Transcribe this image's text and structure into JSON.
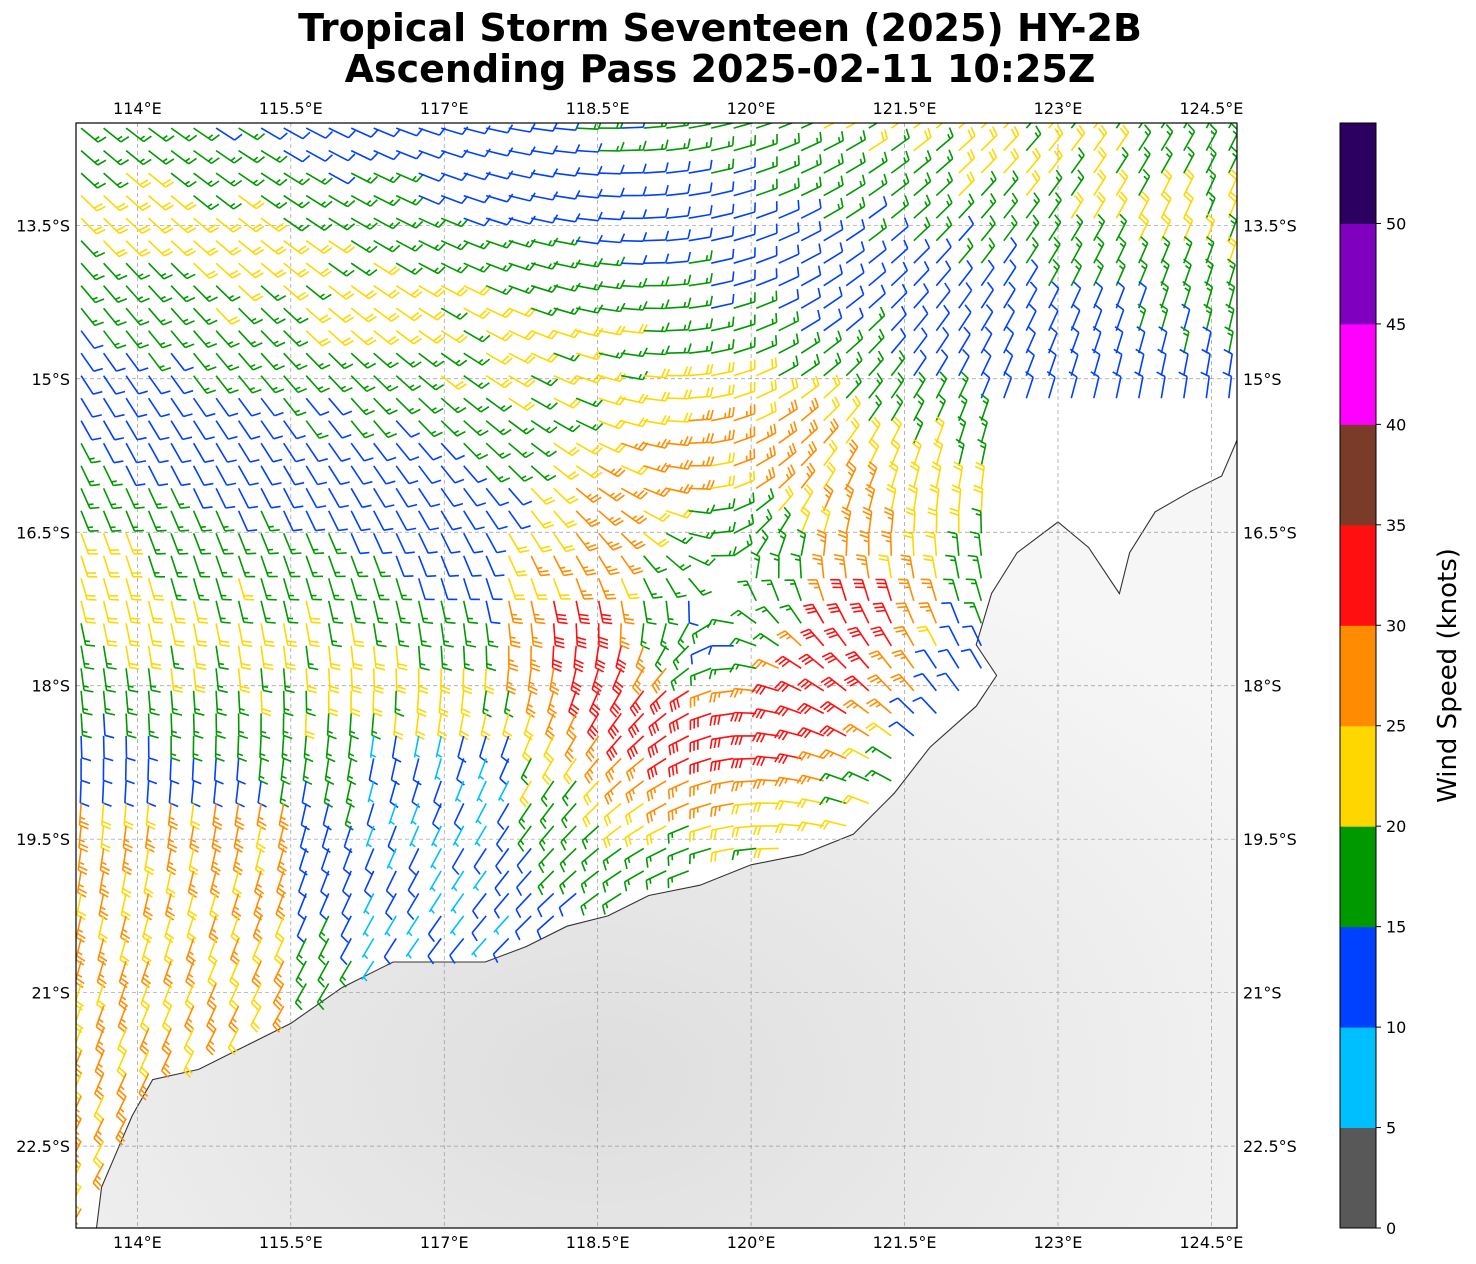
{
  "title": {
    "line1": "Tropical Storm Seventeen (2025) HY-2B",
    "line2": "Ascending Pass 2025-02-11 10:25Z"
  },
  "axes": {
    "lon_ticks": [
      "114°E",
      "115.5°E",
      "117°E",
      "118.5°E",
      "120°E",
      "121.5°E",
      "123°E",
      "124.5°E"
    ],
    "lat_ticks": [
      "13.5°S",
      "15°S",
      "16.5°S",
      "18°S",
      "19.5°S",
      "21°S",
      "22.5°S"
    ],
    "lon_range": [
      113.4,
      124.75
    ],
    "lat_range": [
      -23.3,
      -12.5
    ]
  },
  "colorbar": {
    "label": "Wind Speed (knots)",
    "ticks": [
      "0",
      "5",
      "10",
      "15",
      "20",
      "25",
      "30",
      "35",
      "40",
      "45",
      "50"
    ],
    "bins": [
      {
        "min": 0,
        "max": 5,
        "color": "#585858"
      },
      {
        "min": 5,
        "max": 10,
        "color": "#00bfff"
      },
      {
        "min": 10,
        "max": 15,
        "color": "#0040ff"
      },
      {
        "min": 15,
        "max": 20,
        "color": "#009900"
      },
      {
        "min": 20,
        "max": 25,
        "color": "#ffd700"
      },
      {
        "min": 25,
        "max": 30,
        "color": "#ff8c00"
      },
      {
        "min": 30,
        "max": 35,
        "color": "#ff0f0f"
      },
      {
        "min": 35,
        "max": 40,
        "color": "#7a3b28"
      },
      {
        "min": 40,
        "max": 45,
        "color": "#ff00ff"
      },
      {
        "min": 45,
        "max": 50,
        "color": "#8000c0"
      },
      {
        "min": 50,
        "max": 55,
        "color": "#2b0060"
      }
    ]
  },
  "storm": {
    "center_lon": 119.7,
    "center_lat": -17.1
  },
  "wind_field": {
    "grid_spacing_deg": 0.22,
    "swath_east_lon": 122.3,
    "units": "knots"
  },
  "coastline": [
    [
      113.6,
      -23.3
    ],
    [
      113.65,
      -22.9
    ],
    [
      113.8,
      -22.55
    ],
    [
      113.95,
      -22.2
    ],
    [
      114.15,
      -21.85
    ],
    [
      114.6,
      -21.75
    ],
    [
      115.0,
      -21.55
    ],
    [
      115.5,
      -21.3
    ],
    [
      116.0,
      -20.95
    ],
    [
      116.5,
      -20.7
    ],
    [
      117.0,
      -20.7
    ],
    [
      117.4,
      -20.7
    ],
    [
      117.8,
      -20.55
    ],
    [
      118.2,
      -20.35
    ],
    [
      118.6,
      -20.25
    ],
    [
      119.0,
      -20.05
    ],
    [
      119.5,
      -19.95
    ],
    [
      120.0,
      -19.75
    ],
    [
      120.5,
      -19.65
    ],
    [
      121.0,
      -19.45
    ],
    [
      121.4,
      -19.05
    ],
    [
      121.75,
      -18.6
    ],
    [
      122.2,
      -18.2
    ],
    [
      122.4,
      -17.9
    ],
    [
      122.2,
      -17.6
    ],
    [
      122.35,
      -17.1
    ],
    [
      122.6,
      -16.7
    ],
    [
      123.0,
      -16.4
    ],
    [
      123.3,
      -16.65
    ],
    [
      123.6,
      -17.1
    ],
    [
      123.7,
      -16.7
    ],
    [
      123.95,
      -16.3
    ],
    [
      124.3,
      -16.1
    ],
    [
      124.6,
      -15.95
    ],
    [
      124.75,
      -15.6
    ]
  ]
}
